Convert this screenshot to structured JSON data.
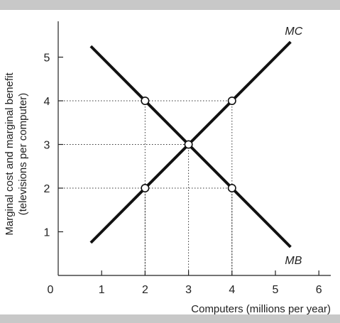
{
  "chart_data": {
    "type": "line",
    "xlabel": "Computers (millions per year)",
    "ylabel_lines": [
      "Marginal cost and marginal benefit",
      "(televisions per computer)"
    ],
    "xlim": [
      0,
      6
    ],
    "ylim": [
      0,
      6
    ],
    "x_ticks": [
      1,
      2,
      3,
      4,
      5,
      6
    ],
    "y_ticks": [
      1,
      2,
      3,
      4,
      5
    ],
    "origin_label": "0",
    "series": [
      {
        "name": "MC",
        "x": [
          0.75,
          5.35
        ],
        "y": [
          0.75,
          5.35
        ]
      },
      {
        "name": "MB",
        "x": [
          0.75,
          5.35
        ],
        "y": [
          5.25,
          0.65
        ]
      }
    ],
    "points": [
      {
        "x": 2,
        "y": 4
      },
      {
        "x": 4,
        "y": 4
      },
      {
        "x": 3,
        "y": 3
      },
      {
        "x": 2,
        "y": 2
      },
      {
        "x": 4,
        "y": 2
      }
    ],
    "dotted_guides": [
      {
        "x": 2,
        "y": 4
      },
      {
        "x": 4,
        "y": 4
      },
      {
        "x": 3,
        "y": 3
      },
      {
        "x": 2,
        "y": 2
      },
      {
        "x": 4,
        "y": 2
      }
    ],
    "colors": {
      "line": "#111111",
      "grid": "#333333",
      "band": "#c8c8c8"
    }
  }
}
